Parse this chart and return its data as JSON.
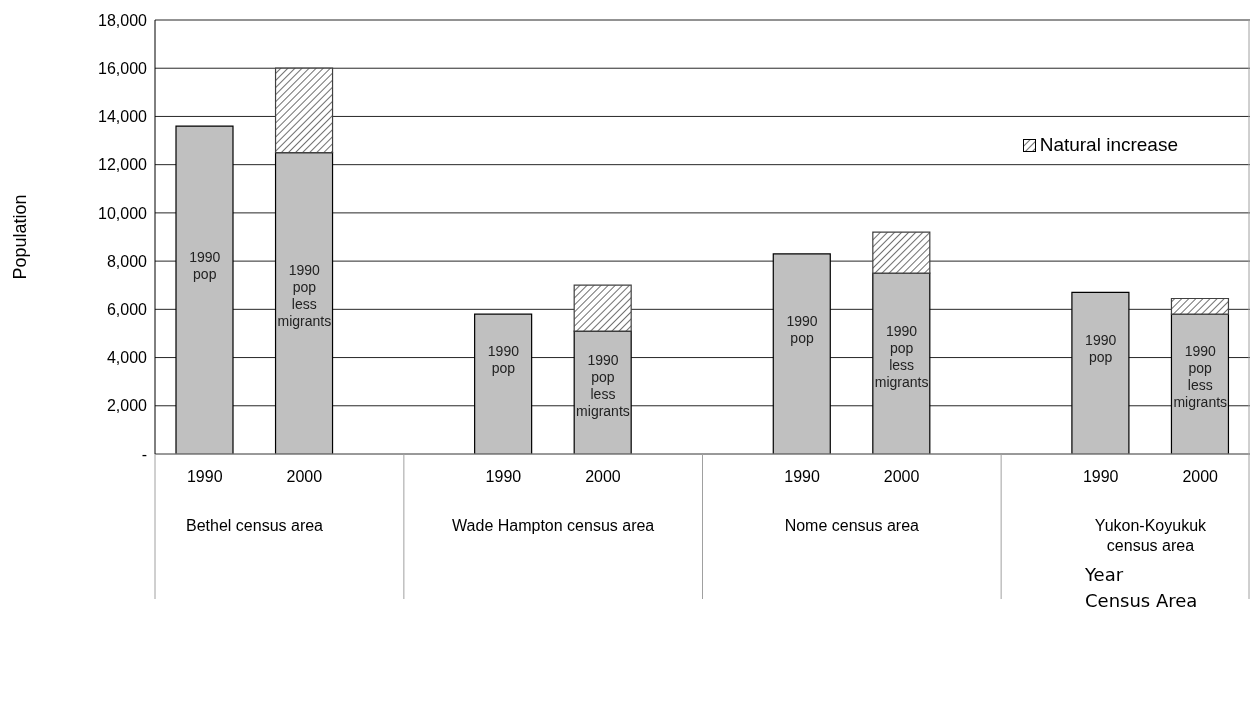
{
  "chart_data": {
    "type": "bar",
    "stacked": true,
    "ylabel": "Population",
    "xlabel": "Year\nCensus Area",
    "categories": [
      "1990",
      "2000",
      null,
      "1990",
      "2000",
      null,
      "1990",
      "2000",
      null,
      "1990",
      "2000"
    ],
    "series": [
      {
        "color": "#c0c0c0",
        "values": [
          13600,
          12500,
          null,
          5800,
          5100,
          null,
          8300,
          7500,
          null,
          6700,
          5800
        ]
      },
      {
        "name": "Natural increase",
        "color": "#404040",
        "values": [
          null,
          3500,
          null,
          null,
          1900,
          null,
          null,
          1700,
          null,
          null,
          650
        ]
      }
    ],
    "annotations": [
      "Bethel census area",
      "Wade Hampton census area",
      "Nome census area",
      "Yukon-Koyukuk census area",
      "1990 pop",
      "1990 pop less migrants",
      "1990 pop",
      "1990 pop less migrants",
      "1990 pop",
      "1990 pop less migrants",
      "1990 pop",
      "1990 pop less migrants"
    ],
    "ylim": [
      0,
      18000
    ],
    "yticks": [
      {
        "value": 0,
        "label": "-"
      },
      {
        "value": 2000,
        "label": "2,000"
      },
      {
        "value": 4000,
        "label": "4,000"
      },
      {
        "value": 6000,
        "label": "6,000"
      },
      {
        "value": 8000,
        "label": "8,000"
      },
      {
        "value": 10000,
        "label": "10,000"
      },
      {
        "value": 12000,
        "label": "12,000"
      },
      {
        "value": 14000,
        "label": "14,000"
      },
      {
        "value": 16000,
        "label": "16,000"
      },
      {
        "value": 18000,
        "label": "18,000"
      }
    ],
    "grid": "y",
    "legend": "top right"
  }
}
